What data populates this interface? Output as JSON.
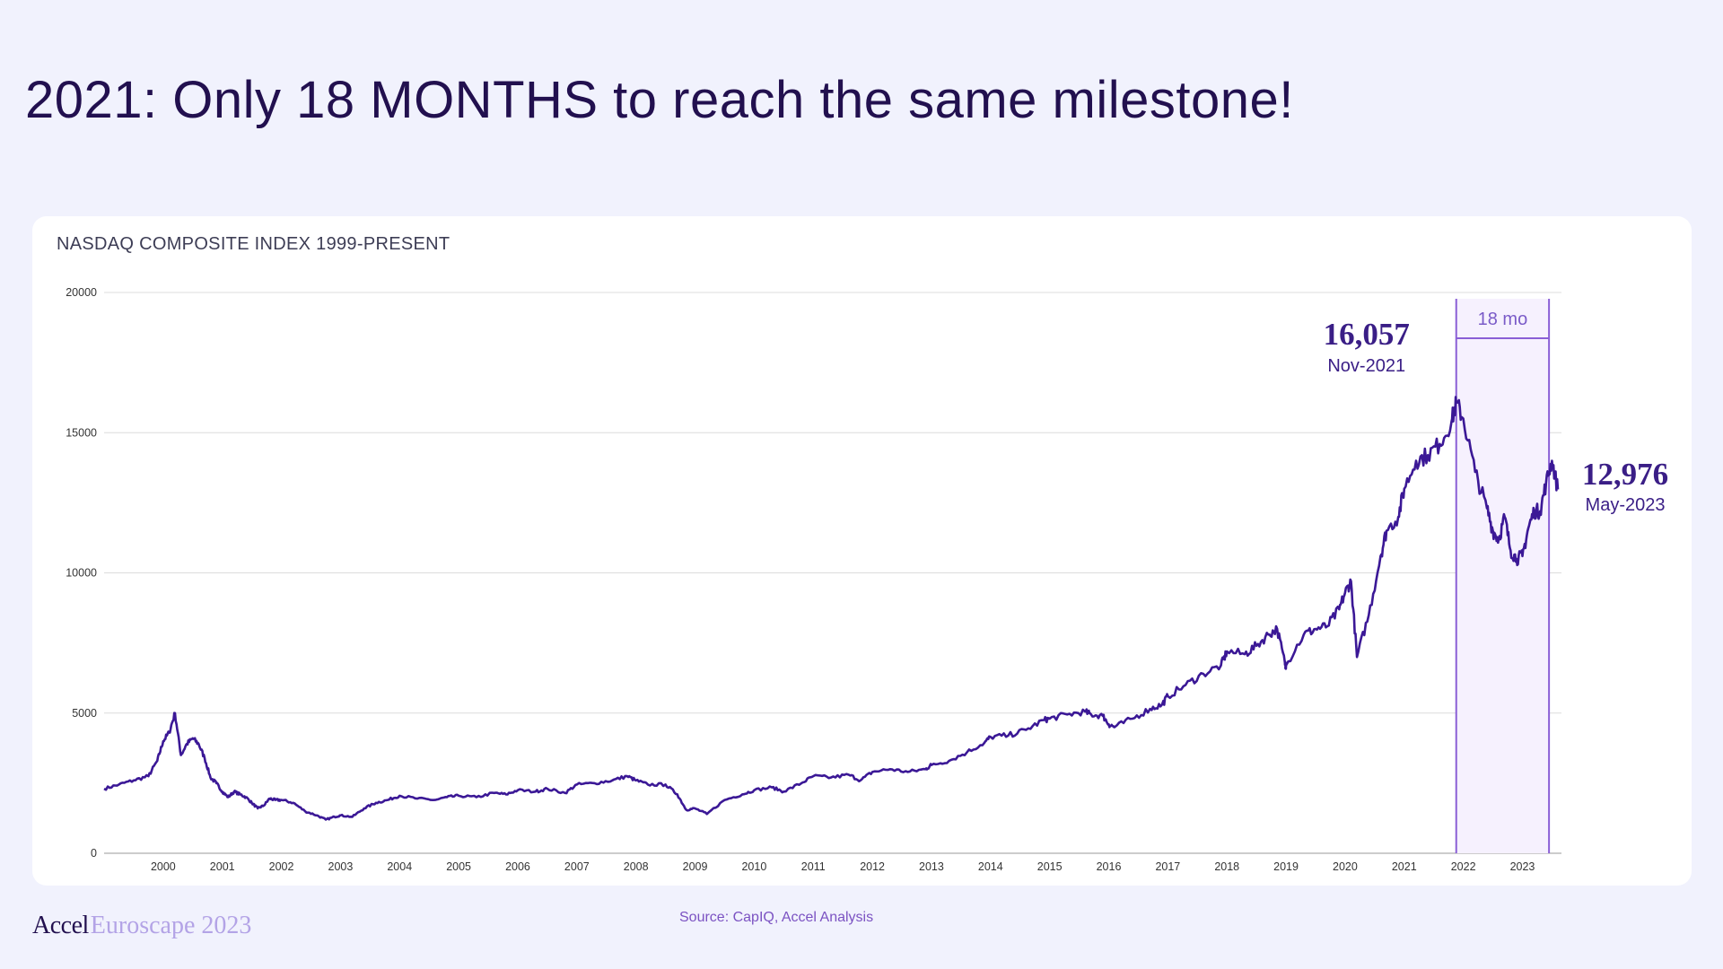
{
  "slide": {
    "title": "2021: Only 18 MONTHS to reach the same milestone!",
    "source": "Source: CapIQ, Accel Analysis",
    "logo": {
      "brand": "Accel",
      "event": "Euroscape 2023"
    }
  },
  "chart_data": {
    "type": "line",
    "title": "NASDAQ COMPOSITE INDEX 1999-PRESENT",
    "xlabel": "",
    "ylabel": "",
    "xlim": [
      1999.0,
      2023.6
    ],
    "ylim": [
      0,
      20000
    ],
    "y_ticks": [
      0,
      5000,
      10000,
      15000,
      20000
    ],
    "x_ticks": [
      2000,
      2001,
      2002,
      2003,
      2004,
      2005,
      2006,
      2007,
      2008,
      2009,
      2010,
      2011,
      2012,
      2013,
      2014,
      2015,
      2016,
      2017,
      2018,
      2019,
      2020,
      2021,
      2022,
      2023
    ],
    "grid": "horizontal",
    "line_color": "#3b1896",
    "series": [
      {
        "x": [
          1999.0,
          1999.25,
          1999.5,
          1999.75,
          1999.9,
          2000.0,
          2000.1,
          2000.2,
          2000.3,
          2000.4,
          2000.5,
          2000.6,
          2000.7,
          2000.8,
          2000.9,
          2001.0,
          2001.1,
          2001.2,
          2001.3,
          2001.4,
          2001.5,
          2001.6,
          2001.7,
          2001.8,
          2001.9,
          2002.0,
          2002.2,
          2002.4,
          2002.6,
          2002.75,
          2002.9,
          2003.0,
          2003.2,
          2003.4,
          2003.6,
          2003.8,
          2004.0,
          2004.3,
          2004.6,
          2004.8,
          2005.0,
          2005.3,
          2005.6,
          2005.8,
          2006.0,
          2006.3,
          2006.5,
          2006.8,
          2007.0,
          2007.3,
          2007.6,
          2007.85,
          2008.0,
          2008.2,
          2008.5,
          2008.7,
          2008.85,
          2009.0,
          2009.2,
          2009.5,
          2009.8,
          2010.0,
          2010.3,
          2010.5,
          2010.8,
          2011.0,
          2011.3,
          2011.6,
          2011.8,
          2012.0,
          2012.3,
          2012.6,
          2012.9,
          2013.0,
          2013.3,
          2013.6,
          2013.9,
          2014.0,
          2014.3,
          2014.6,
          2014.9,
          2015.0,
          2015.3,
          2015.6,
          2015.7,
          2015.9,
          2016.0,
          2016.1,
          2016.4,
          2016.7,
          2016.9,
          2017.0,
          2017.3,
          2017.6,
          2017.9,
          2018.0,
          2018.3,
          2018.5,
          2018.7,
          2018.85,
          2018.98,
          2019.0,
          2019.3,
          2019.5,
          2019.7,
          2019.9,
          2020.0,
          2020.1,
          2020.2,
          2020.4,
          2020.6,
          2020.7,
          2020.9,
          2021.0,
          2021.2,
          2021.4,
          2021.6,
          2021.8,
          2021.88,
          2022.0,
          2022.2,
          2022.4,
          2022.5,
          2022.6,
          2022.7,
          2022.8,
          2022.9,
          2023.0,
          2023.1,
          2023.2,
          2023.3,
          2023.4,
          2023.5,
          2023.6
        ],
        "values": [
          2300,
          2450,
          2600,
          2750,
          3300,
          4000,
          4300,
          5000,
          3500,
          3900,
          4100,
          3900,
          3400,
          2700,
          2500,
          2200,
          2000,
          2200,
          2100,
          2000,
          1800,
          1600,
          1700,
          1950,
          1900,
          1900,
          1800,
          1500,
          1350,
          1200,
          1300,
          1350,
          1300,
          1600,
          1800,
          1900,
          2050,
          1950,
          1900,
          2000,
          2050,
          2000,
          2150,
          2100,
          2250,
          2200,
          2300,
          2150,
          2450,
          2500,
          2600,
          2750,
          2600,
          2450,
          2450,
          2100,
          1550,
          1600,
          1400,
          1900,
          2100,
          2250,
          2350,
          2200,
          2500,
          2750,
          2700,
          2800,
          2600,
          2900,
          3000,
          2900,
          3000,
          3150,
          3300,
          3600,
          3950,
          4150,
          4200,
          4400,
          4750,
          4800,
          4950,
          5050,
          4950,
          4900,
          4600,
          4500,
          4800,
          5150,
          5300,
          5600,
          6000,
          6400,
          6700,
          7200,
          7100,
          7400,
          7800,
          8000,
          6800,
          6700,
          7800,
          8000,
          8100,
          8700,
          9300,
          9700,
          7000,
          8500,
          10600,
          11500,
          12000,
          13000,
          14000,
          14200,
          14600,
          15400,
          16057,
          15500,
          13600,
          12300,
          11500,
          11200,
          12000,
          10800,
          10500,
          10600,
          11600,
          12200,
          12200,
          13200,
          14000,
          12976
        ]
      }
    ],
    "annotations": {
      "peak": {
        "value": "16,057",
        "date": "Nov-2021"
      },
      "latest": {
        "value": "12,976",
        "date": "May-2023"
      },
      "span": {
        "label": "18 mo",
        "start": 2021.88,
        "end": 2023.45
      }
    }
  }
}
